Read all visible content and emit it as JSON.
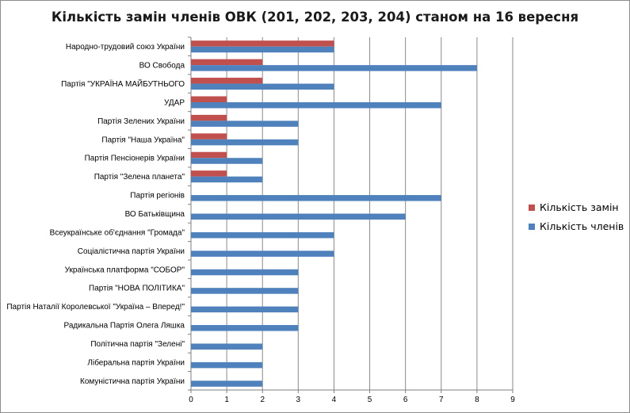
{
  "chart_data": {
    "type": "bar",
    "orientation": "horizontal",
    "title": "Кількість замін членів ОВК (201, 202, 203, 204) станом  на 16 вересня",
    "categories": [
      "Народно-трудовий союз України",
      "ВО Свобода",
      "Партія \"УКРАЇНА МАЙБУТНЬОГО",
      "УДАР",
      "Партія Зелених України",
      "Партія \"Наша Україна\"",
      "Партія Пенсіонерів України",
      "Партія \"Зелена планета\"",
      "Партія регіонів",
      "ВО Батьківщина",
      "Всеукраїнське об'єднання \"Громада\"",
      "Соціалістична партія України",
      "Українська платформа \"СОБОР\"",
      "Партія \"НОВА ПОЛІТИКА\"",
      "Партія Наталії Королевської \"Україна – Вперед!\"",
      "Радикальна Партія Олега Ляшка",
      "Політична партія \"Зелені\"",
      "Ліберальна партія України",
      "Комуністична партія України"
    ],
    "series": [
      {
        "name": "Кількість замін",
        "color": "#c0504d",
        "values": [
          4,
          2,
          2,
          1,
          1,
          1,
          1,
          1,
          0,
          0,
          0,
          0,
          0,
          0,
          0,
          0,
          0,
          0,
          0
        ]
      },
      {
        "name": "Кількість членів",
        "color": "#4f81bd",
        "values": [
          4,
          8,
          4,
          7,
          3,
          3,
          2,
          2,
          7,
          6,
          4,
          4,
          3,
          3,
          3,
          3,
          2,
          2,
          2
        ]
      }
    ],
    "xticks": [
      "0",
      "1",
      "2",
      "3",
      "4",
      "5",
      "6",
      "7",
      "8",
      "9"
    ],
    "xlim": [
      0,
      9
    ],
    "grid": true,
    "legend_position": "right"
  }
}
